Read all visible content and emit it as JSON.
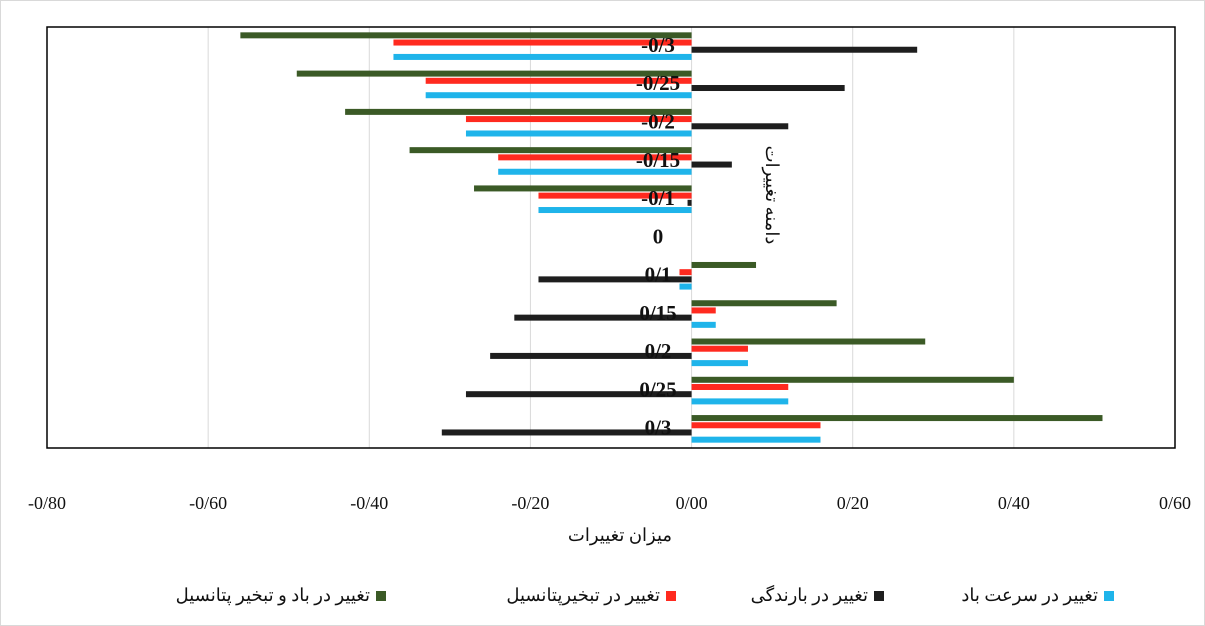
{
  "chart_data": {
    "type": "hbar",
    "categories": [
      "-0/3",
      "-0/25",
      "-0/2",
      "-0/15",
      "-0/1",
      "0",
      "0/1",
      "0/15",
      "0/2",
      "0/25",
      "0/3"
    ],
    "series": [
      {
        "name": "تغییر در باد و تبخیر پتانسیل",
        "color": "#3b5a26",
        "values": [
          -0.56,
          -0.49,
          -0.43,
          -0.35,
          -0.27,
          0,
          0.08,
          0.18,
          0.29,
          0.4,
          0.51
        ]
      },
      {
        "name": "تغییر در تبخیرپتانسیل",
        "color": "#ff2a1f",
        "values": [
          -0.37,
          -0.33,
          -0.28,
          -0.24,
          -0.19,
          0,
          -0.015,
          0.03,
          0.07,
          0.12,
          0.16
        ]
      },
      {
        "name": "تغییر در بارندگی",
        "color": "#1e1e1e",
        "values": [
          0.28,
          0.19,
          0.12,
          0.05,
          -0.005,
          0,
          -0.19,
          -0.22,
          -0.25,
          -0.28,
          -0.31
        ]
      },
      {
        "name": "تغییر در سرعت باد",
        "color": "#1fb4ea",
        "values": [
          -0.37,
          -0.33,
          -0.28,
          -0.24,
          -0.19,
          0,
          -0.015,
          0.03,
          0.07,
          0.12,
          0.16
        ]
      }
    ],
    "x_label": "میزان تغییرات",
    "y_label": "دامنه تغییرات",
    "xlim": [
      -0.8,
      0.6
    ],
    "xticks": [
      {
        "value": -0.8,
        "label": "-0/80"
      },
      {
        "value": -0.6,
        "label": "-0/60"
      },
      {
        "value": -0.4,
        "label": "-0/40"
      },
      {
        "value": -0.2,
        "label": "-0/20"
      },
      {
        "value": 0,
        "label": "0/00"
      },
      {
        "value": 0.2,
        "label": "0/20"
      },
      {
        "value": 0.4,
        "label": "0/40"
      },
      {
        "value": 0.6,
        "label": "0/60"
      }
    ],
    "grid": true
  }
}
